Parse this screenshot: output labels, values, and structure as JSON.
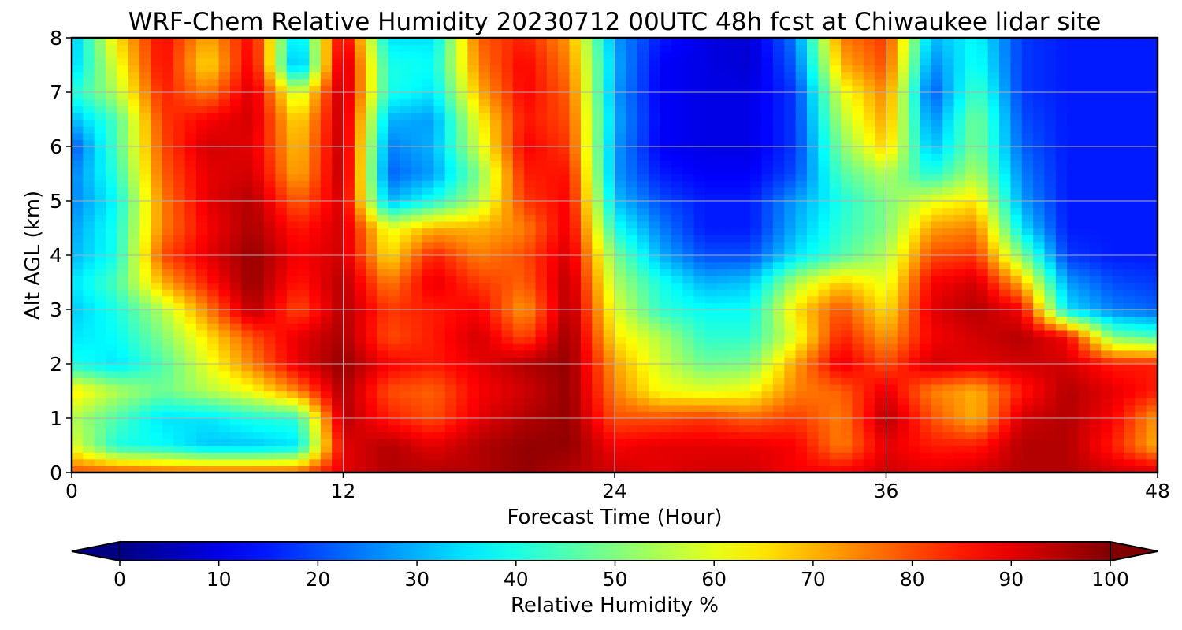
{
  "chart_data": {
    "type": "heatmap",
    "title": "WRF-Chem Relative Humidity 20230712 00UTC 48h fcst at Chiwaukee lidar site",
    "xlabel": "Forecast Time (Hour)",
    "ylabel": "Alt AGL (km)",
    "xlim": [
      0,
      48
    ],
    "ylim": [
      0,
      8
    ],
    "x_ticks": [
      0,
      12,
      24,
      36,
      48
    ],
    "y_ticks": [
      0,
      1,
      2,
      3,
      4,
      5,
      6,
      7,
      8
    ],
    "grid": true,
    "colormap": "jet",
    "colorbar": {
      "label": "Relative Humidity %",
      "range": [
        0,
        100
      ],
      "ticks": [
        0,
        10,
        20,
        30,
        40,
        50,
        60,
        70,
        80,
        90,
        100
      ],
      "extend": "both",
      "orientation": "horizontal",
      "placement": "bottom"
    },
    "grid_x": [
      0,
      2,
      4,
      6,
      8,
      10,
      12,
      14,
      16,
      18,
      20,
      22,
      24,
      26,
      28,
      30,
      32,
      34,
      36,
      38,
      40,
      42,
      44,
      46,
      48
    ],
    "grid_y": [
      0,
      0.5,
      1,
      1.5,
      2,
      2.5,
      3,
      3.5,
      4,
      4.5,
      5,
      5.5,
      6,
      6.5,
      7,
      7.5,
      8
    ],
    "values": [
      [
        80,
        80,
        78,
        78,
        78,
        78,
        90,
        95,
        95,
        95,
        98,
        95,
        92,
        90,
        92,
        92,
        88,
        88,
        92,
        90,
        92,
        95,
        95,
        92,
        92
      ],
      [
        60,
        40,
        38,
        32,
        32,
        35,
        90,
        95,
        90,
        95,
        98,
        98,
        88,
        90,
        90,
        90,
        88,
        75,
        90,
        85,
        85,
        95,
        95,
        85,
        70
      ],
      [
        55,
        45,
        35,
        35,
        40,
        42,
        95,
        85,
        80,
        90,
        95,
        98,
        80,
        80,
        82,
        78,
        82,
        75,
        95,
        80,
        70,
        92,
        95,
        88,
        72
      ],
      [
        65,
        55,
        48,
        55,
        62,
        75,
        96,
        80,
        78,
        88,
        92,
        98,
        75,
        62,
        60,
        62,
        75,
        78,
        90,
        75,
        70,
        85,
        95,
        90,
        85
      ],
      [
        40,
        35,
        45,
        60,
        75,
        90,
        98,
        88,
        85,
        90,
        95,
        98,
        72,
        58,
        48,
        50,
        72,
        90,
        80,
        92,
        90,
        92,
        92,
        85,
        85
      ],
      [
        35,
        38,
        50,
        65,
        80,
        90,
        96,
        80,
        85,
        92,
        80,
        98,
        65,
        55,
        42,
        42,
        60,
        85,
        72,
        88,
        92,
        95,
        88,
        50,
        45
      ],
      [
        32,
        40,
        55,
        75,
        95,
        80,
        95,
        82,
        85,
        88,
        72,
        96,
        60,
        42,
        38,
        38,
        65,
        80,
        65,
        90,
        95,
        88,
        35,
        25,
        22
      ],
      [
        35,
        45,
        70,
        85,
        98,
        85,
        95,
        75,
        90,
        82,
        78,
        95,
        55,
        40,
        30,
        32,
        55,
        68,
        60,
        88,
        92,
        70,
        28,
        20,
        18
      ],
      [
        30,
        40,
        80,
        90,
        98,
        88,
        92,
        65,
        85,
        75,
        80,
        92,
        50,
        30,
        20,
        20,
        35,
        45,
        55,
        80,
        82,
        50,
        18,
        15,
        15
      ],
      [
        28,
        40,
        75,
        88,
        96,
        85,
        92,
        60,
        70,
        70,
        75,
        90,
        40,
        25,
        15,
        15,
        30,
        42,
        50,
        72,
        75,
        35,
        15,
        15,
        15
      ],
      [
        25,
        38,
        75,
        90,
        95,
        78,
        92,
        30,
        40,
        55,
        82,
        88,
        32,
        20,
        15,
        15,
        28,
        40,
        50,
        60,
        65,
        28,
        15,
        15,
        15
      ],
      [
        25,
        42,
        78,
        90,
        92,
        70,
        95,
        22,
        28,
        50,
        85,
        86,
        28,
        15,
        12,
        12,
        20,
        45,
        55,
        40,
        55,
        25,
        15,
        15,
        15
      ],
      [
        20,
        45,
        80,
        92,
        90,
        68,
        95,
        25,
        30,
        58,
        88,
        82,
        28,
        12,
        10,
        10,
        18,
        50,
        68,
        30,
        50,
        22,
        15,
        15,
        15
      ],
      [
        30,
        45,
        82,
        88,
        92,
        65,
        95,
        30,
        28,
        62,
        86,
        80,
        30,
        12,
        10,
        10,
        18,
        55,
        72,
        25,
        50,
        20,
        15,
        15,
        15
      ],
      [
        40,
        55,
        85,
        75,
        92,
        55,
        96,
        40,
        35,
        70,
        88,
        78,
        28,
        12,
        10,
        10,
        18,
        60,
        75,
        20,
        45,
        18,
        15,
        15,
        15
      ],
      [
        32,
        60,
        88,
        65,
        90,
        25,
        96,
        40,
        38,
        75,
        88,
        75,
        30,
        12,
        10,
        8,
        22,
        70,
        80,
        25,
        40,
        18,
        15,
        15,
        15
      ],
      [
        30,
        65,
        88,
        70,
        88,
        30,
        92,
        35,
        35,
        78,
        85,
        72,
        28,
        15,
        10,
        8,
        25,
        75,
        82,
        30,
        38,
        18,
        15,
        15,
        15
      ]
    ]
  }
}
